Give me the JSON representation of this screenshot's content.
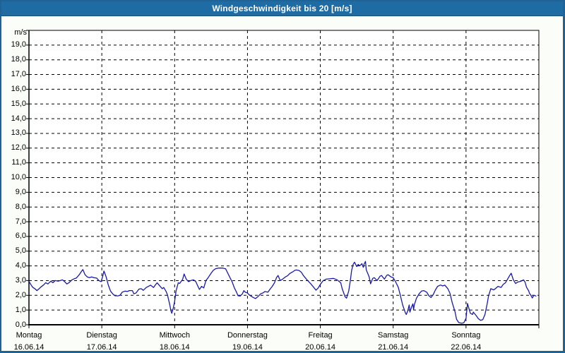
{
  "window": {
    "title": "Windgeschwindigkeit bis 20 [m/s]"
  },
  "colors": {
    "title_bar_bg": "#1F6BA3",
    "title_text": "#FFFFFF",
    "window_bg": "#FBFDF8",
    "window_border": "#1F6296",
    "plot_bg": "#FFFFFF",
    "grid": "#000000",
    "axis": "#000000",
    "series_line": "#1A1AA8",
    "label_text": "#000000"
  },
  "chart_data": {
    "type": "line",
    "title": "Windgeschwindigkeit bis 20 [m/s]",
    "unit_label": "m/s",
    "ylabel": "m/s",
    "ylim": [
      0,
      20
    ],
    "y_tick_step": 1.0,
    "y_tick_labels": [
      "0,0",
      "1,0",
      "2,0",
      "3,0",
      "4,0",
      "5,0",
      "6,0",
      "7,0",
      "8,0",
      "9,0",
      "10,0",
      "11,0",
      "12,0",
      "13,0",
      "14,0",
      "15,0",
      "16,0",
      "17,0",
      "18,0",
      "19,0"
    ],
    "grid": "dashed",
    "legend": "none",
    "x_axis_days": [
      {
        "day": "Montag",
        "date": "16.06.14"
      },
      {
        "day": "Dienstag",
        "date": "17.06.14"
      },
      {
        "day": "Mittwoch",
        "date": "18.06.14"
      },
      {
        "day": "Donnerstag",
        "date": "19.06.14"
      },
      {
        "day": "Freitag",
        "date": "20.06.14"
      },
      {
        "day": "Samstag",
        "date": "21.06.14"
      },
      {
        "day": "Sonntag",
        "date": "22.06.14"
      }
    ],
    "xlim_days": [
      0,
      7
    ],
    "series": [
      {
        "name": "Windgeschwindigkeit",
        "color": "#1A1AA8",
        "points": [
          [
            0.0,
            2.95
          ],
          [
            0.03,
            2.7
          ],
          [
            0.05,
            2.55
          ],
          [
            0.08,
            2.45
          ],
          [
            0.11,
            2.32
          ],
          [
            0.14,
            2.45
          ],
          [
            0.16,
            2.55
          ],
          [
            0.2,
            2.7
          ],
          [
            0.23,
            2.86
          ],
          [
            0.26,
            2.77
          ],
          [
            0.3,
            2.96
          ],
          [
            0.33,
            2.86
          ],
          [
            0.36,
            3.0
          ],
          [
            0.4,
            2.96
          ],
          [
            0.43,
            3.0
          ],
          [
            0.46,
            3.05
          ],
          [
            0.49,
            2.93
          ],
          [
            0.52,
            2.77
          ],
          [
            0.55,
            2.86
          ],
          [
            0.59,
            3.05
          ],
          [
            0.62,
            3.12
          ],
          [
            0.65,
            3.17
          ],
          [
            0.69,
            3.4
          ],
          [
            0.72,
            3.62
          ],
          [
            0.74,
            3.75
          ],
          [
            0.77,
            3.4
          ],
          [
            0.8,
            3.25
          ],
          [
            0.83,
            3.2
          ],
          [
            0.86,
            3.25
          ],
          [
            0.89,
            3.2
          ],
          [
            0.93,
            3.17
          ],
          [
            0.96,
            3.0
          ],
          [
            0.99,
            2.93
          ],
          [
            1.01,
            3.25
          ],
          [
            1.03,
            3.65
          ],
          [
            1.06,
            3.25
          ],
          [
            1.09,
            2.69
          ],
          [
            1.12,
            2.29
          ],
          [
            1.15,
            2.1
          ],
          [
            1.18,
            1.97
          ],
          [
            1.22,
            1.96
          ],
          [
            1.25,
            2.0
          ],
          [
            1.28,
            2.21
          ],
          [
            1.32,
            2.29
          ],
          [
            1.35,
            2.26
          ],
          [
            1.38,
            2.32
          ],
          [
            1.42,
            2.32
          ],
          [
            1.44,
            2.1
          ],
          [
            1.47,
            2.16
          ],
          [
            1.51,
            2.42
          ],
          [
            1.54,
            2.45
          ],
          [
            1.57,
            2.34
          ],
          [
            1.61,
            2.53
          ],
          [
            1.64,
            2.61
          ],
          [
            1.67,
            2.69
          ],
          [
            1.71,
            2.53
          ],
          [
            1.74,
            2.74
          ],
          [
            1.76,
            2.85
          ],
          [
            1.8,
            2.61
          ],
          [
            1.83,
            2.45
          ],
          [
            1.85,
            2.53
          ],
          [
            1.88,
            2.29
          ],
          [
            1.9,
            2.05
          ],
          [
            1.93,
            1.42
          ],
          [
            1.95,
            0.94
          ],
          [
            1.96,
            0.78
          ],
          [
            1.98,
            1.1
          ],
          [
            2.0,
            1.6
          ],
          [
            2.02,
            2.3
          ],
          [
            2.05,
            2.85
          ],
          [
            2.07,
            2.81
          ],
          [
            2.11,
            3.09
          ],
          [
            2.13,
            3.45
          ],
          [
            2.16,
            3.09
          ],
          [
            2.19,
            2.93
          ],
          [
            2.22,
            3.0
          ],
          [
            2.26,
            3.05
          ],
          [
            2.29,
            2.93
          ],
          [
            2.32,
            2.61
          ],
          [
            2.34,
            2.4
          ],
          [
            2.37,
            2.61
          ],
          [
            2.4,
            2.5
          ],
          [
            2.43,
            3.0
          ],
          [
            2.46,
            3.2
          ],
          [
            2.5,
            3.5
          ],
          [
            2.53,
            3.7
          ],
          [
            2.56,
            3.8
          ],
          [
            2.6,
            3.85
          ],
          [
            2.63,
            3.85
          ],
          [
            2.66,
            3.85
          ],
          [
            2.7,
            3.8
          ],
          [
            2.72,
            3.6
          ],
          [
            2.75,
            3.3
          ],
          [
            2.79,
            2.9
          ],
          [
            2.82,
            2.5
          ],
          [
            2.85,
            2.2
          ],
          [
            2.87,
            1.97
          ],
          [
            2.9,
            1.95
          ],
          [
            2.93,
            2.1
          ],
          [
            2.95,
            2.32
          ],
          [
            2.97,
            2.21
          ],
          [
            3.0,
            2.16
          ],
          [
            3.02,
            2.05
          ],
          [
            3.04,
            1.97
          ],
          [
            3.08,
            1.85
          ],
          [
            3.11,
            1.78
          ],
          [
            3.14,
            1.9
          ],
          [
            3.18,
            2.1
          ],
          [
            3.21,
            2.16
          ],
          [
            3.24,
            2.26
          ],
          [
            3.28,
            2.21
          ],
          [
            3.31,
            2.42
          ],
          [
            3.34,
            2.61
          ],
          [
            3.37,
            2.85
          ],
          [
            3.4,
            3.22
          ],
          [
            3.42,
            3.35
          ],
          [
            3.45,
            3.0
          ],
          [
            3.48,
            3.09
          ],
          [
            3.52,
            3.25
          ],
          [
            3.55,
            3.33
          ],
          [
            3.58,
            3.48
          ],
          [
            3.62,
            3.59
          ],
          [
            3.65,
            3.7
          ],
          [
            3.67,
            3.72
          ],
          [
            3.71,
            3.68
          ],
          [
            3.74,
            3.56
          ],
          [
            3.77,
            3.33
          ],
          [
            3.81,
            3.09
          ],
          [
            3.84,
            2.93
          ],
          [
            3.87,
            2.77
          ],
          [
            3.91,
            2.53
          ],
          [
            3.94,
            2.35
          ],
          [
            3.97,
            2.5
          ],
          [
            4.0,
            2.75
          ],
          [
            4.04,
            3.0
          ],
          [
            4.08,
            3.1
          ],
          [
            4.13,
            3.12
          ],
          [
            4.18,
            3.15
          ],
          [
            4.23,
            3.05
          ],
          [
            4.28,
            2.85
          ],
          [
            4.3,
            2.45
          ],
          [
            4.34,
            1.9
          ],
          [
            4.36,
            1.81
          ],
          [
            4.39,
            2.3
          ],
          [
            4.41,
            2.95
          ],
          [
            4.43,
            3.7
          ],
          [
            4.45,
            4.1
          ],
          [
            4.47,
            4.25
          ],
          [
            4.5,
            3.95
          ],
          [
            4.52,
            4.1
          ],
          [
            4.54,
            4.0
          ],
          [
            4.57,
            4.15
          ],
          [
            4.59,
            3.9
          ],
          [
            4.6,
            4.12
          ],
          [
            4.62,
            4.3
          ],
          [
            4.63,
            3.72
          ],
          [
            4.65,
            3.5
          ],
          [
            4.67,
            3.25
          ],
          [
            4.69,
            2.78
          ],
          [
            4.72,
            3.15
          ],
          [
            4.74,
            3.2
          ],
          [
            4.78,
            3.0
          ],
          [
            4.82,
            3.3
          ],
          [
            4.84,
            3.35
          ],
          [
            4.88,
            3.1
          ],
          [
            4.91,
            3.35
          ],
          [
            4.93,
            3.4
          ],
          [
            4.97,
            3.25
          ],
          [
            5.0,
            3.2
          ],
          [
            5.03,
            2.95
          ],
          [
            5.07,
            2.55
          ],
          [
            5.1,
            1.97
          ],
          [
            5.13,
            1.35
          ],
          [
            5.17,
            0.78
          ],
          [
            5.18,
            0.7
          ],
          [
            5.2,
            0.94
          ],
          [
            5.22,
            1.35
          ],
          [
            5.23,
            0.86
          ],
          [
            5.25,
            1.18
          ],
          [
            5.27,
            1.42
          ],
          [
            5.28,
            1.02
          ],
          [
            5.29,
            1.35
          ],
          [
            5.32,
            1.81
          ],
          [
            5.36,
            2.13
          ],
          [
            5.39,
            2.29
          ],
          [
            5.42,
            2.32
          ],
          [
            5.46,
            2.21
          ],
          [
            5.49,
            1.97
          ],
          [
            5.52,
            1.85
          ],
          [
            5.55,
            2.05
          ],
          [
            5.58,
            2.37
          ],
          [
            5.61,
            2.61
          ],
          [
            5.65,
            2.7
          ],
          [
            5.68,
            2.64
          ],
          [
            5.71,
            2.69
          ],
          [
            5.75,
            2.45
          ],
          [
            5.78,
            2.13
          ],
          [
            5.81,
            1.5
          ],
          [
            5.85,
            0.86
          ],
          [
            5.87,
            0.38
          ],
          [
            5.9,
            0.15
          ],
          [
            5.94,
            0.1
          ],
          [
            5.97,
            0.14
          ],
          [
            6.0,
            0.45
          ],
          [
            6.02,
            1.45
          ],
          [
            6.04,
            1.1
          ],
          [
            6.06,
            0.78
          ],
          [
            6.09,
            0.7
          ],
          [
            6.1,
            0.86
          ],
          [
            6.14,
            0.62
          ],
          [
            6.17,
            0.41
          ],
          [
            6.2,
            0.3
          ],
          [
            6.23,
            0.35
          ],
          [
            6.26,
            0.7
          ],
          [
            6.29,
            1.42
          ],
          [
            6.31,
            1.97
          ],
          [
            6.33,
            2.29
          ],
          [
            6.34,
            2.45
          ],
          [
            6.38,
            2.37
          ],
          [
            6.41,
            2.48
          ],
          [
            6.44,
            2.61
          ],
          [
            6.48,
            2.53
          ],
          [
            6.51,
            2.74
          ],
          [
            6.54,
            2.85
          ],
          [
            6.57,
            3.09
          ],
          [
            6.6,
            3.35
          ],
          [
            6.62,
            3.5
          ],
          [
            6.63,
            3.35
          ],
          [
            6.65,
            3.05
          ],
          [
            6.68,
            2.8
          ],
          [
            6.71,
            2.9
          ],
          [
            6.75,
            2.95
          ],
          [
            6.79,
            3.05
          ],
          [
            6.81,
            2.9
          ],
          [
            6.83,
            2.55
          ],
          [
            6.86,
            2.3
          ],
          [
            6.87,
            2.15
          ],
          [
            6.89,
            2.0
          ],
          [
            6.91,
            1.82
          ],
          [
            6.93,
            2.0
          ],
          [
            6.96,
            1.95
          ]
        ]
      }
    ]
  }
}
